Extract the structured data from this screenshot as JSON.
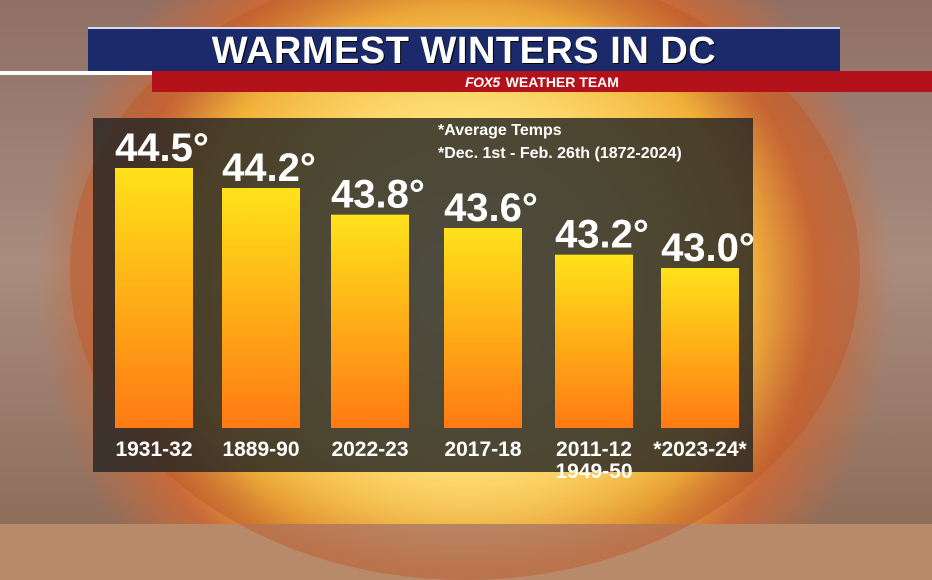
{
  "header": {
    "title": "WARMEST WINTERS IN DC",
    "logo": "FOX5",
    "subtitle": "WEATHER TEAM"
  },
  "notes": [
    "*Average Temps",
    "*Dec. 1st - Feb. 26th (1872-2024)"
  ],
  "colors": {
    "bar_top": "#ffe21a",
    "bar_bottom": "#ff7a14",
    "title_bar": "#1b2a6b",
    "sub_bar": "#b4121b"
  },
  "chart_data": {
    "type": "bar",
    "categories": [
      "1931-32",
      "1889-90",
      "2022-23",
      "2017-18",
      "2011-12\n1949-50",
      "*2023-24*"
    ],
    "values": [
      44.5,
      44.2,
      43.8,
      43.6,
      43.2,
      43.0
    ],
    "value_labels": [
      "44.5°",
      "44.2°",
      "43.8°",
      "43.6°",
      "43.2°",
      "43.0°"
    ],
    "unit": "°F",
    "grid": false,
    "legend": "none"
  }
}
